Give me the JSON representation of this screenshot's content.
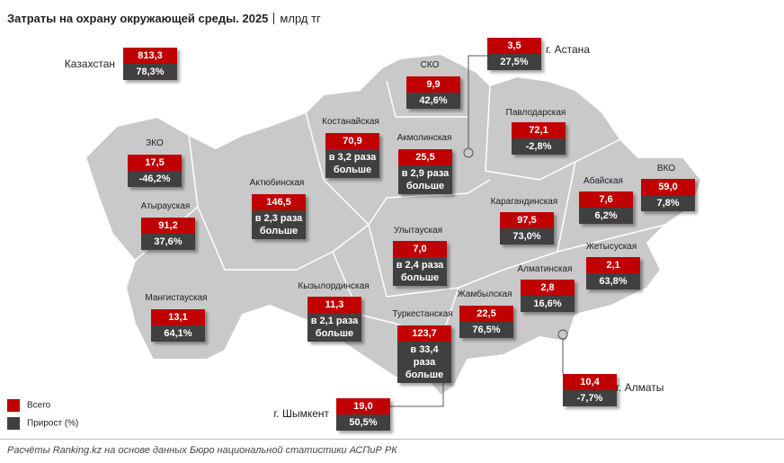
{
  "header": {
    "title": "Затраты на охрану окружающей среды. 2025",
    "unit": "млрд тг"
  },
  "regions": [
    {
      "name": "Казахстан",
      "total": "813,3",
      "growth": "78,3%"
    },
    {
      "name": "СКО",
      "total": "9,9",
      "growth": "42,6%"
    },
    {
      "name": "г. Астана",
      "total": "3,5",
      "growth": "27,5%"
    },
    {
      "name": "Павлодарская",
      "total": "72,1",
      "growth": "-2,8%"
    },
    {
      "name": "Костанайская",
      "total": "70,9",
      "growth": "в 3,2 раза больше"
    },
    {
      "name": "Акмолинская",
      "total": "25,5",
      "growth": "в 2,9 раза больше"
    },
    {
      "name": "ЗКО",
      "total": "17,5",
      "growth": "-46,2%"
    },
    {
      "name": "Абайская",
      "total": "7,6",
      "growth": "6,2%"
    },
    {
      "name": "ВКО",
      "total": "59,0",
      "growth": "7,8%"
    },
    {
      "name": "Актюбинская",
      "total": "146,5",
      "growth": "в 2,3 раза больше"
    },
    {
      "name": "Атырауская",
      "total": "91,2",
      "growth": "37,6%"
    },
    {
      "name": "Карагандинская",
      "total": "97,5",
      "growth": "73,0%"
    },
    {
      "name": "Улытауская",
      "total": "7,0",
      "growth": "в 2,4 раза больше"
    },
    {
      "name": "Жетысуская",
      "total": "2,1",
      "growth": "63,8%"
    },
    {
      "name": "Мангистауская",
      "total": "13,1",
      "growth": "64,1%"
    },
    {
      "name": "Кызылординская",
      "total": "11,3",
      "growth": "в 2,1 раза больше"
    },
    {
      "name": "Алматинская",
      "total": "2,8",
      "growth": "16,6%"
    },
    {
      "name": "Жамбылская",
      "total": "22,5",
      "growth": "76,5%"
    },
    {
      "name": "Туркестанская",
      "total": "123,7",
      "growth": "в 33,4 раза больше"
    },
    {
      "name": "г. Алматы",
      "total": "10,4",
      "growth": "-7,7%"
    },
    {
      "name": "г. Шымкент",
      "total": "19,0",
      "growth": "50,5%"
    }
  ],
  "legend": {
    "total": "Всего",
    "growth": "Прирост (%)"
  },
  "source": "Расчёты Ranking.kz на основе данных Бюро национальной статистики АСПиР РК"
}
